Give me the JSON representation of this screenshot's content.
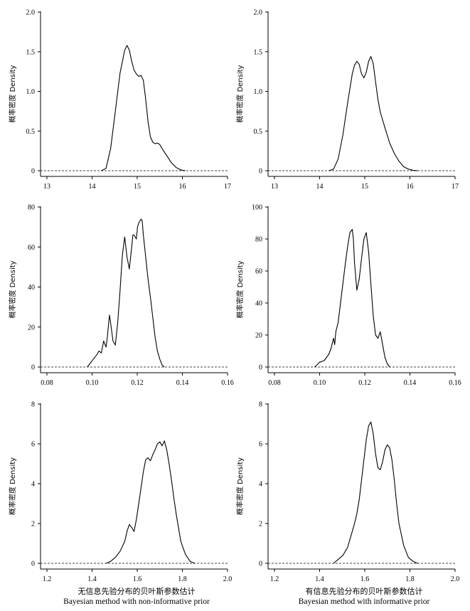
{
  "chart_data": [
    {
      "type": "line",
      "ylabel": "概率密度 Density",
      "xlim": [
        13,
        17
      ],
      "ylim": [
        0,
        2.0
      ],
      "xticks": [
        "13",
        "14",
        "15",
        "16",
        "17"
      ],
      "yticks": [
        "0",
        "0.5",
        "1.0",
        "1.5",
        "2.0"
      ],
      "baseline": "dashed line at y = 0",
      "x": [
        14.3,
        14.4,
        14.5,
        14.6,
        14.7,
        14.8,
        14.85,
        14.9,
        14.95,
        15.0,
        15.05,
        15.1,
        15.15,
        15.2,
        15.25,
        15.3,
        15.35,
        15.4,
        15.45,
        15.5,
        15.55,
        15.6,
        15.7,
        15.8,
        15.9,
        16.0,
        16.1
      ],
      "y": [
        0,
        0.03,
        0.28,
        0.75,
        1.23,
        1.52,
        1.58,
        1.52,
        1.38,
        1.27,
        1.22,
        1.19,
        1.2,
        1.14,
        0.9,
        0.62,
        0.43,
        0.36,
        0.34,
        0.35,
        0.33,
        0.28,
        0.19,
        0.1,
        0.04,
        0.01,
        0
      ]
    },
    {
      "type": "line",
      "ylabel": "概率密度 Density",
      "xlim": [
        13,
        17
      ],
      "ylim": [
        0,
        2.0
      ],
      "xticks": [
        "13",
        "14",
        "15",
        "16",
        "17"
      ],
      "yticks": [
        "0",
        "0.5",
        "1.0",
        "1.5",
        "2.0"
      ],
      "baseline": "dashed line at y = 0",
      "x": [
        14.3,
        14.4,
        14.5,
        14.6,
        14.7,
        14.8,
        14.85,
        14.9,
        14.95,
        15.0,
        15.05,
        15.1,
        15.15,
        15.2,
        15.25,
        15.3,
        15.35,
        15.4,
        15.5,
        15.6,
        15.7,
        15.8,
        15.9,
        16.0,
        16.1,
        16.2
      ],
      "y": [
        0,
        0.02,
        0.15,
        0.45,
        0.85,
        1.22,
        1.33,
        1.38,
        1.34,
        1.22,
        1.17,
        1.24,
        1.38,
        1.44,
        1.35,
        1.12,
        0.9,
        0.74,
        0.54,
        0.35,
        0.22,
        0.12,
        0.05,
        0.02,
        0.005,
        0
      ]
    },
    {
      "type": "line",
      "ylabel": "概率密度 Density",
      "xlim": [
        0.08,
        0.16
      ],
      "ylim": [
        0,
        80
      ],
      "xticks": [
        "0.08",
        "0.10",
        "0.12",
        "0.14",
        "0.16"
      ],
      "yticks": [
        "0",
        "20",
        "40",
        "60",
        "80"
      ],
      "baseline": "dashed line at y = 0",
      "x": [
        0.1,
        0.102,
        0.104,
        0.105,
        0.106,
        0.107,
        0.108,
        0.1085,
        0.109,
        0.1095,
        0.11,
        0.111,
        0.112,
        0.113,
        0.114,
        0.115,
        0.116,
        0.117,
        0.118,
        0.119,
        0.1195,
        0.12,
        0.121,
        0.1215,
        0.122,
        0.123,
        0.1235,
        0.124,
        0.125,
        0.126,
        0.127,
        0.128,
        0.129,
        0.13,
        0.131,
        0.132,
        0.133
      ],
      "y": [
        0,
        3,
        6,
        8,
        7,
        13,
        10,
        14,
        20,
        26,
        22,
        13,
        11,
        22,
        38,
        56,
        65,
        55,
        49,
        60,
        66,
        66,
        64,
        70,
        72,
        74,
        73,
        66,
        55,
        44,
        35,
        25,
        15,
        8,
        4,
        1,
        0
      ]
    },
    {
      "type": "line",
      "ylabel": "概率密度 Density",
      "xlim": [
        0.08,
        0.16
      ],
      "ylim": [
        0,
        100
      ],
      "xticks": [
        "0.08",
        "0.10",
        "0.12",
        "0.14",
        "0.16"
      ],
      "yticks": [
        "0",
        "20",
        "40",
        "60",
        "80",
        "100"
      ],
      "baseline": "dashed line at y = 0",
      "x": [
        0.1,
        0.102,
        0.104,
        0.106,
        0.107,
        0.108,
        0.1085,
        0.109,
        0.11,
        0.111,
        0.112,
        0.113,
        0.114,
        0.115,
        0.116,
        0.1165,
        0.117,
        0.118,
        0.119,
        0.12,
        0.121,
        0.122,
        0.123,
        0.124,
        0.125,
        0.126,
        0.127,
        0.128,
        0.129,
        0.13,
        0.131,
        0.132
      ],
      "y": [
        0,
        3,
        4,
        8,
        12,
        18,
        14,
        22,
        28,
        40,
        52,
        64,
        75,
        84,
        86,
        80,
        65,
        48,
        55,
        68,
        80,
        84,
        72,
        52,
        32,
        20,
        18,
        22,
        14,
        6,
        2,
        0
      ]
    },
    {
      "type": "line",
      "ylabel": "概率密度 Density",
      "xlim": [
        1.2,
        2.0
      ],
      "ylim": [
        0,
        8
      ],
      "xticks": [
        "1.2",
        "1.4",
        "1.6",
        "1.8",
        "2.0"
      ],
      "yticks": [
        "0",
        "2",
        "4",
        "6",
        "8"
      ],
      "baseline": "dashed line at y = 0",
      "xlabel": "无信息先验分布的贝叶斯参数估计 Bayesian method with non-informative prior",
      "x": [
        1.48,
        1.5,
        1.52,
        1.54,
        1.56,
        1.57,
        1.58,
        1.59,
        1.6,
        1.61,
        1.62,
        1.63,
        1.64,
        1.65,
        1.66,
        1.67,
        1.68,
        1.69,
        1.7,
        1.71,
        1.72,
        1.73,
        1.74,
        1.75,
        1.76,
        1.77,
        1.78,
        1.79,
        1.8,
        1.82,
        1.84,
        1.86
      ],
      "y": [
        0,
        0.1,
        0.3,
        0.6,
        1.1,
        1.6,
        1.95,
        1.8,
        1.6,
        2.2,
        3.0,
        3.8,
        4.6,
        5.2,
        5.3,
        5.15,
        5.45,
        5.7,
        6.0,
        6.1,
        5.9,
        6.15,
        5.7,
        5.0,
        4.2,
        3.3,
        2.5,
        1.8,
        1.1,
        0.45,
        0.1,
        0
      ]
    },
    {
      "type": "line",
      "ylabel": "概率密度 Density",
      "xlim": [
        1.2,
        2.0
      ],
      "ylim": [
        0,
        8
      ],
      "xticks": [
        "1.2",
        "1.4",
        "1.6",
        "1.8",
        "2.0"
      ],
      "yticks": [
        "0",
        "2",
        "4",
        "6",
        "8"
      ],
      "baseline": "dashed line at y = 0",
      "xlabel": "有信息先验分布的贝叶斯参数估计 Bayesian method with informative prior",
      "x": [
        1.48,
        1.5,
        1.52,
        1.54,
        1.56,
        1.57,
        1.58,
        1.59,
        1.6,
        1.61,
        1.62,
        1.63,
        1.64,
        1.65,
        1.66,
        1.67,
        1.68,
        1.69,
        1.7,
        1.71,
        1.72,
        1.73,
        1.74,
        1.75,
        1.76,
        1.78,
        1.8,
        1.82,
        1.84
      ],
      "y": [
        0,
        0.2,
        0.4,
        0.8,
        1.6,
        2.0,
        2.5,
        3.2,
        4.2,
        5.2,
        6.2,
        6.9,
        7.1,
        6.5,
        5.5,
        4.8,
        4.7,
        5.1,
        5.7,
        5.95,
        5.8,
        5.2,
        4.2,
        3.0,
        2.0,
        0.9,
        0.3,
        0.1,
        0
      ]
    }
  ],
  "captions": {
    "left": {
      "zh": "无信息先验分布的贝叶斯参数估计",
      "en": "Bayesian method with non-informative prior"
    },
    "right": {
      "zh": "有信息先验分布的贝叶斯参数估计",
      "en": "Bayesian method with informative prior"
    }
  }
}
